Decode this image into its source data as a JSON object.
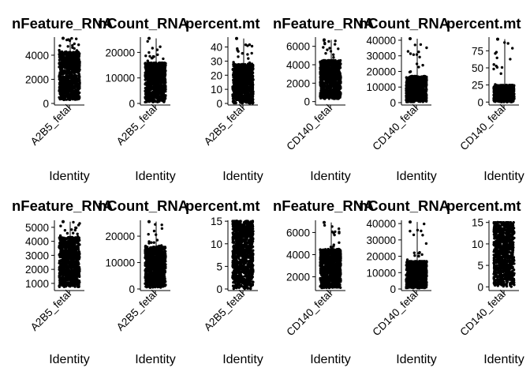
{
  "chart_data": [
    {
      "type": "scatter",
      "title": "nFeature_RNA",
      "xlabel": "Identity",
      "categories": [
        "A2B5_fetal"
      ],
      "ylim": [
        0,
        5500
      ],
      "yticks": [
        0,
        2000,
        4000
      ],
      "ytick_labels": [
        "0",
        "2000",
        "4000"
      ],
      "body_min": 300,
      "body_max": 4300,
      "max_value": 5400,
      "grid": false,
      "legend": "none"
    },
    {
      "type": "scatter",
      "title": "nCount_RNA",
      "xlabel": "Identity",
      "categories": [
        "A2B5_fetal"
      ],
      "ylim": [
        0,
        26000
      ],
      "yticks": [
        0,
        10000,
        20000
      ],
      "ytick_labels": [
        "0",
        "10000",
        "20000"
      ],
      "body_min": 500,
      "body_max": 16000,
      "max_value": 25500,
      "grid": false,
      "legend": "none"
    },
    {
      "type": "scatter",
      "title": "percent.mt",
      "xlabel": "Identity",
      "categories": [
        "A2B5_fetal"
      ],
      "ylim": [
        0,
        47
      ],
      "yticks": [
        0,
        10,
        20,
        30,
        40
      ],
      "ytick_labels": [
        "0",
        "10",
        "20",
        "30",
        "40"
      ],
      "body_min": 0,
      "body_max": 28,
      "max_value": 46,
      "grid": false,
      "legend": "none"
    },
    {
      "type": "scatter",
      "title": "nFeature_RNA",
      "xlabel": "Identity",
      "categories": [
        "CD140_fetal"
      ],
      "ylim": [
        -200,
        7000
      ],
      "yticks": [
        0,
        2000,
        4000,
        6000
      ],
      "ytick_labels": [
        "0",
        "2000",
        "4000",
        "6000"
      ],
      "body_min": 300,
      "body_max": 4500,
      "max_value": 6700,
      "grid": false,
      "legend": "none"
    },
    {
      "type": "scatter",
      "title": "nCount_RNA",
      "xlabel": "Identity",
      "categories": [
        "CD140_fetal"
      ],
      "ylim": [
        -500,
        42000
      ],
      "yticks": [
        0,
        10000,
        20000,
        30000,
        40000
      ],
      "ytick_labels": [
        "0",
        "10000",
        "20000",
        "30000",
        "40000"
      ],
      "body_min": 500,
      "body_max": 17000,
      "max_value": 41000,
      "grid": false,
      "legend": "none"
    },
    {
      "type": "scatter",
      "title": "percent.mt",
      "xlabel": "Identity",
      "categories": [
        "CD140_fetal"
      ],
      "ylim": [
        -2,
        95
      ],
      "yticks": [
        0,
        25,
        50,
        75
      ],
      "ytick_labels": [
        "0",
        "25",
        "50",
        "75"
      ],
      "body_min": 0,
      "body_max": 25,
      "max_value": 92,
      "grid": false,
      "legend": "none"
    },
    {
      "type": "scatter",
      "title": "nFeature_RNA",
      "xlabel": "Identity",
      "categories": [
        "A2B5_fetal"
      ],
      "ylim": [
        600,
        5500
      ],
      "yticks": [
        1000,
        2000,
        3000,
        4000,
        5000
      ],
      "ytick_labels": [
        "1000",
        "2000",
        "3000",
        "4000",
        "5000"
      ],
      "body_min": 750,
      "body_max": 4300,
      "max_value": 5400,
      "grid": false,
      "legend": "none"
    },
    {
      "type": "scatter",
      "title": "nCount_RNA",
      "xlabel": "Identity",
      "categories": [
        "A2B5_fetal"
      ],
      "ylim": [
        0,
        26000
      ],
      "yticks": [
        0,
        10000,
        20000
      ],
      "ytick_labels": [
        "0",
        "10000",
        "20000"
      ],
      "body_min": 500,
      "body_max": 16000,
      "max_value": 25500,
      "grid": false,
      "legend": "none"
    },
    {
      "type": "scatter",
      "title": "percent.mt",
      "xlabel": "Identity",
      "categories": [
        "A2B5_fetal"
      ],
      "ylim": [
        0,
        15.2
      ],
      "yticks": [
        0,
        5,
        10,
        15
      ],
      "ytick_labels": [
        "0",
        "5",
        "10",
        "15"
      ],
      "body_min": 0,
      "body_max": 15,
      "max_value": 15,
      "grid": false,
      "legend": "none"
    },
    {
      "type": "scatter",
      "title": "nFeature_RNA",
      "xlabel": "Identity",
      "categories": [
        "CD140_fetal"
      ],
      "ylim": [
        900,
        7100
      ],
      "yticks": [
        2000,
        4000,
        6000
      ],
      "ytick_labels": [
        "2000",
        "4000",
        "6000"
      ],
      "body_min": 1000,
      "body_max": 4500,
      "max_value": 6900,
      "grid": false,
      "legend": "none"
    },
    {
      "type": "scatter",
      "title": "nCount_RNA",
      "xlabel": "Identity",
      "categories": [
        "CD140_fetal"
      ],
      "ylim": [
        0,
        42000
      ],
      "yticks": [
        0,
        10000,
        20000,
        30000,
        40000
      ],
      "ytick_labels": [
        "0",
        "10000",
        "20000",
        "30000",
        "40000"
      ],
      "body_min": 500,
      "body_max": 17000,
      "max_value": 41000,
      "grid": false,
      "legend": "none"
    },
    {
      "type": "scatter",
      "title": "percent.mt",
      "xlabel": "Identity",
      "categories": [
        "CD140_fetal"
      ],
      "ylim": [
        -0.5,
        15.5
      ],
      "yticks": [
        0,
        5,
        10,
        15
      ],
      "ytick_labels": [
        "0",
        "5",
        "10",
        "15"
      ],
      "body_min": 0,
      "body_max": 15,
      "max_value": 15,
      "grid": false,
      "legend": "none"
    }
  ],
  "colors": {
    "points": "#000000",
    "violin_outline": "#2e6b2e"
  }
}
